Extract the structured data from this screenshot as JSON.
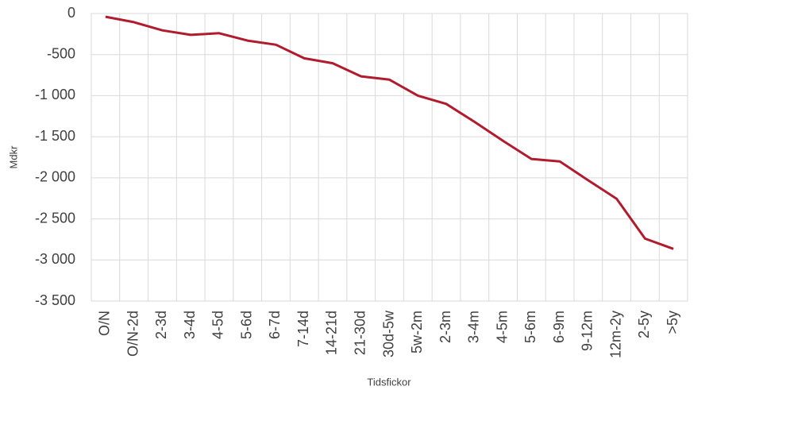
{
  "chart_data": {
    "type": "line",
    "x_label": "Tidsfickor",
    "y_label": "Mdkr",
    "categories": [
      "O/N",
      "O/N-2d",
      "2-3d",
      "3-4d",
      "4-5d",
      "5-6d",
      "6-7d",
      "7-14d",
      "14-21d",
      "21-30d",
      "30d-5w",
      "5w-2m",
      "2-3m",
      "3-4m",
      "4-5m",
      "5-6m",
      "6-9m",
      "9-12m",
      "12m-2y",
      "2-5y",
      ">5y"
    ],
    "series": [
      {
        "color": "#b01c2e",
        "values": [
          -40,
          -105,
          -205,
          -260,
          -240,
          -330,
          -380,
          -545,
          -605,
          -765,
          -805,
          -1000,
          -1100,
          -1320,
          -1550,
          -1770,
          -1800,
          -2030,
          -2255,
          -2740,
          -2865
        ]
      }
    ],
    "ylim": [
      -3500,
      0
    ],
    "yticks": [
      0,
      -500,
      {
        "value": -1000,
        "label": "-1 000"
      },
      {
        "value": -1500,
        "label": "-1 500"
      },
      {
        "value": -2000,
        "label": "-2 000"
      },
      {
        "value": -2500,
        "label": "-2 500"
      },
      {
        "value": -3000,
        "label": "-3 000"
      },
      {
        "value": -3500,
        "label": "-3 500"
      }
    ],
    "grid": true
  }
}
